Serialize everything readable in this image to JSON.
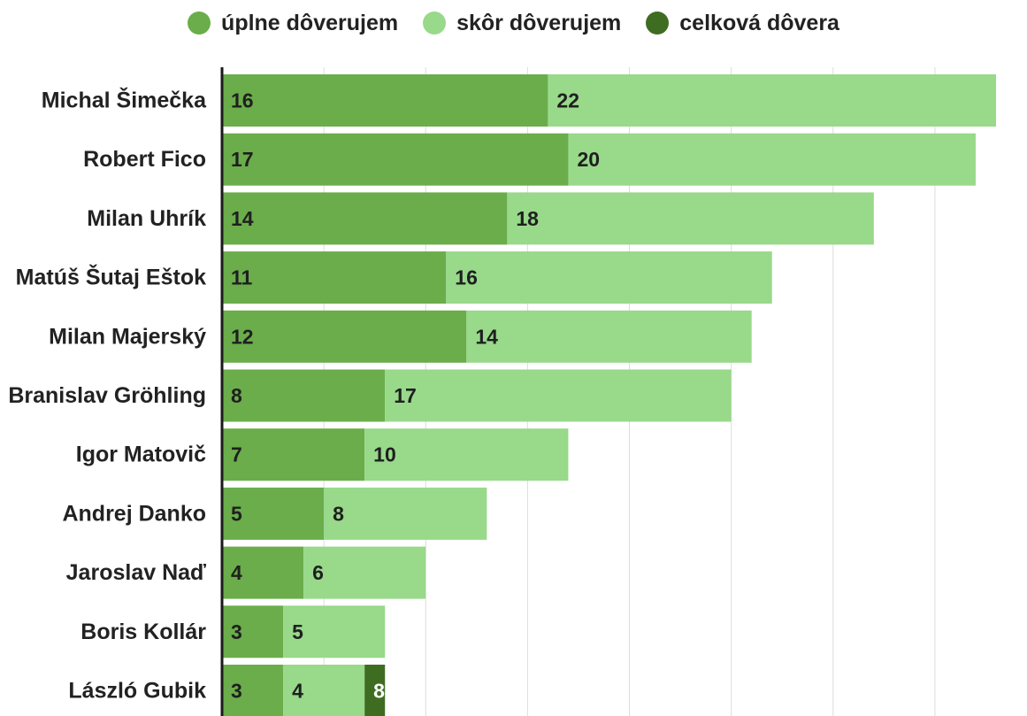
{
  "legend": [
    {
      "label": "úplne dôverujem",
      "color": "#6aad4a"
    },
    {
      "label": "skôr dôverujem",
      "color": "#98d98a"
    },
    {
      "label": "celková dôvera",
      "color": "#3e6d22"
    }
  ],
  "chart_data": {
    "type": "bar",
    "orientation": "horizontal",
    "legend_position": "top-center",
    "grid": true,
    "xlim": [
      0,
      38
    ],
    "categories": [
      "Michal Šimečka",
      "Robert Fico",
      "Milan Uhrík",
      "Matúš Šutaj Eštok",
      "Milan Majerský",
      "Branislav Gröhling",
      "Igor Matovič",
      "Andrej Danko",
      "Jaroslav Naď",
      "Boris Kollár",
      "László Gubik"
    ],
    "series": [
      {
        "name": "úplne dôverujem",
        "color": "#6aad4a",
        "label_color": "#1f1f1f",
        "values": [
          16,
          17,
          14,
          11,
          12,
          8,
          7,
          5,
          4,
          3,
          3
        ]
      },
      {
        "name": "skôr dôverujem",
        "color": "#98d98a",
        "label_color": "#1f1f1f",
        "values": [
          22,
          20,
          18,
          16,
          14,
          17,
          10,
          8,
          6,
          5,
          4
        ]
      },
      {
        "name": "celková dôvera",
        "color": "#3e6d22",
        "label_color": "#ffffff",
        "values": [
          38,
          37,
          32,
          27,
          26,
          25,
          17,
          13,
          10,
          8,
          8
        ]
      }
    ]
  }
}
